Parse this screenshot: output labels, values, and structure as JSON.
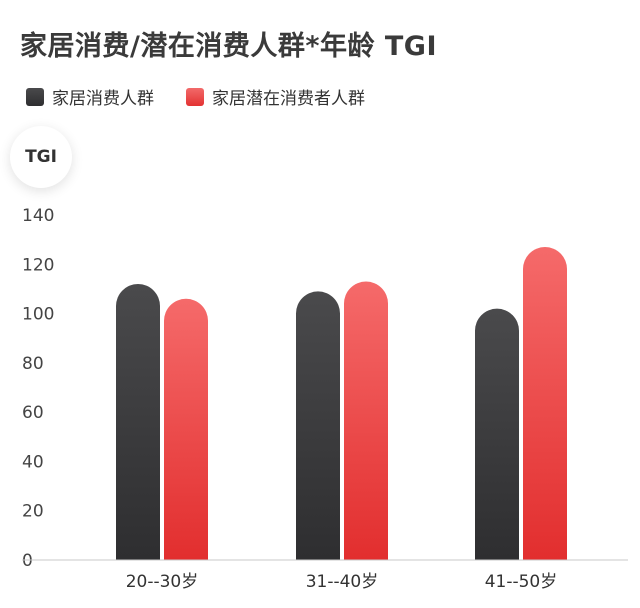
{
  "title": "家居消费/潜在消费人群*年龄 TGI",
  "legend": [
    {
      "label": "家居消费人群",
      "color": "#3c3c3e"
    },
    {
      "label": "家居潜在消费者人群",
      "color": "#ee4646"
    }
  ],
  "unit": "TGI",
  "chart_data": {
    "type": "bar",
    "title": "家居消费/潜在消费人群*年龄 TGI",
    "ylabel": "TGI",
    "categories": [
      "20--30岁",
      "31--40岁",
      "41--50岁"
    ],
    "series": [
      {
        "name": "家居消费人群",
        "values": [
          112,
          109,
          102
        ]
      },
      {
        "name": "家居潜在消费者人群",
        "values": [
          106,
          113,
          127
        ]
      }
    ],
    "ylim": [
      0,
      140
    ],
    "yticks": [
      "0",
      "20",
      "40",
      "60",
      "80",
      "100",
      "120",
      "140"
    ],
    "grid": false,
    "legend_position": "top-left"
  }
}
